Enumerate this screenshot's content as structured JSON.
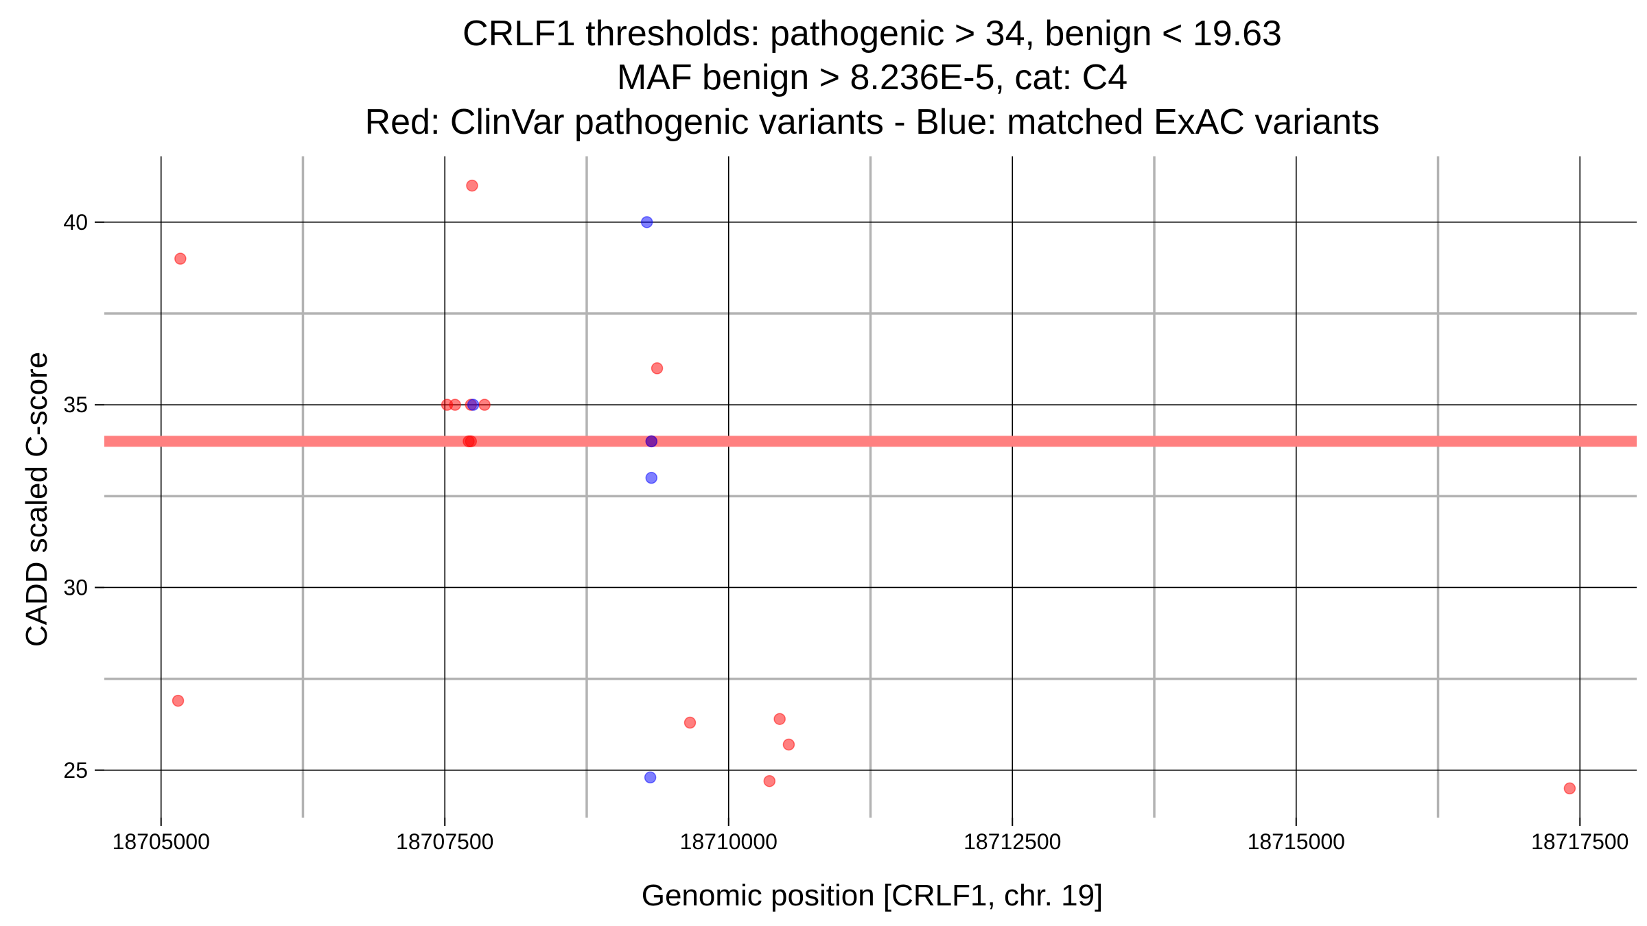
{
  "chart_data": {
    "type": "scatter",
    "title_lines": [
      "CRLF1 thresholds: pathogenic > 34, benign < 19.63",
      "MAF benign > 8.236E-5, cat: C4",
      "Red: ClinVar pathogenic variants - Blue: matched ExAC variants"
    ],
    "xlabel": "Genomic position [CRLF1, chr. 19]",
    "ylabel": "CADD scaled C-score",
    "xlim": [
      18704500,
      18718000
    ],
    "ylim": [
      23.7,
      41.8
    ],
    "x_ticks": [
      18705000,
      18707500,
      18710000,
      18712500,
      18715000,
      18717500
    ],
    "x_tick_labels": [
      "18705000",
      "18707500",
      "18710000",
      "18712500",
      "18715000",
      "18717500"
    ],
    "y_ticks": [
      25,
      30,
      35,
      40
    ],
    "y_tick_labels": [
      "25",
      "30",
      "35",
      "40"
    ],
    "threshold_line": {
      "y": 34,
      "color": "#ff8080"
    },
    "series": [
      {
        "name": "ClinVar pathogenic variants",
        "color": "#ff0000",
        "points": [
          {
            "x": 18705150,
            "y": 26.9
          },
          {
            "x": 18705170,
            "y": 39.0
          },
          {
            "x": 18707740,
            "y": 41.0
          },
          {
            "x": 18707520,
            "y": 35.0
          },
          {
            "x": 18707590,
            "y": 35.0
          },
          {
            "x": 18707730,
            "y": 35.0
          },
          {
            "x": 18707850,
            "y": 35.0
          },
          {
            "x": 18707710,
            "y": 34.0
          },
          {
            "x": 18707730,
            "y": 34.0
          },
          {
            "x": 18709370,
            "y": 36.0
          },
          {
            "x": 18709320,
            "y": 34.0
          },
          {
            "x": 18709660,
            "y": 26.3
          },
          {
            "x": 18710450,
            "y": 26.4
          },
          {
            "x": 18710530,
            "y": 25.7
          },
          {
            "x": 18710360,
            "y": 24.7
          },
          {
            "x": 18717410,
            "y": 24.5
          }
        ]
      },
      {
        "name": "matched ExAC variants",
        "color": "#0000ff",
        "points": [
          {
            "x": 18709280,
            "y": 40.0
          },
          {
            "x": 18707750,
            "y": 35.0
          },
          {
            "x": 18709320,
            "y": 34.0
          },
          {
            "x": 18709320,
            "y": 33.0
          },
          {
            "x": 18709310,
            "y": 24.8
          }
        ]
      }
    ]
  }
}
